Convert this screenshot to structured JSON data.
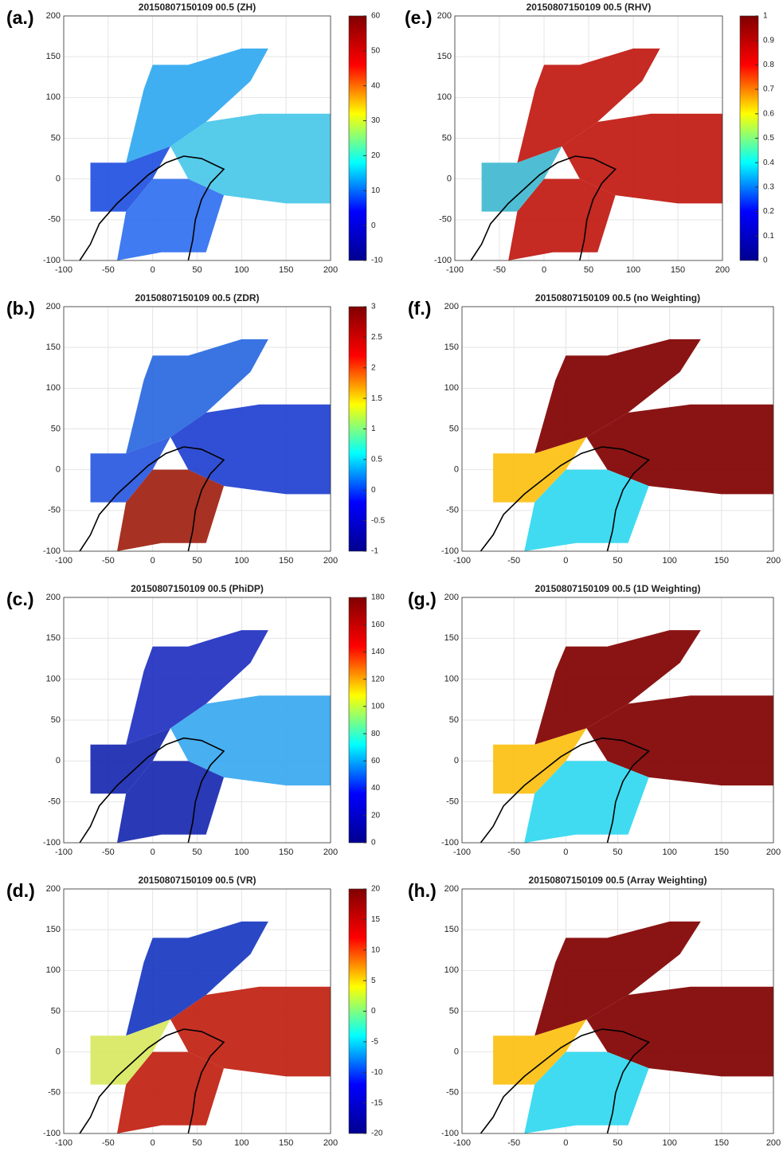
{
  "chart_data": [
    {
      "type": "radar-ppi",
      "label": "(a.)",
      "title": "20150807150109 00.5 (ZH)",
      "xlim": [
        -100,
        200
      ],
      "ylim": [
        -100,
        200
      ],
      "xticks": [
        -100,
        -50,
        0,
        50,
        100,
        150,
        200
      ],
      "yticks": [
        -100,
        -50,
        0,
        50,
        100,
        150,
        200
      ],
      "grid": true,
      "colors": [
        "#30a8f0",
        "#48c8e8",
        "#2050e0",
        "#3070f0"
      ],
      "colorbar": {
        "lim": [
          -10,
          60
        ],
        "ticks": [
          -10,
          0,
          10,
          20,
          30,
          40,
          50,
          60
        ],
        "colormap": [
          "#00008f",
          "#0000ff",
          "#00ffff",
          "#ffff00",
          "#ff0000",
          "#800000"
        ]
      }
    },
    {
      "type": "radar-ppi",
      "label": "(b.)",
      "title": "20150807150109 00.5 (ZDR)",
      "xlim": [
        -100,
        200
      ],
      "ylim": [
        -100,
        200
      ],
      "xticks": [
        -100,
        -50,
        0,
        50,
        100,
        150,
        200
      ],
      "yticks": [
        -100,
        -50,
        0,
        50,
        100,
        150,
        200
      ],
      "grid": true,
      "colors": [
        "#2868e0",
        "#2040d0",
        "#2858e0",
        "#a02010"
      ],
      "colorbar": {
        "lim": [
          -1,
          3
        ],
        "ticks": [
          -1,
          -0.5,
          0,
          0.5,
          1,
          1.5,
          2,
          2.5,
          3
        ],
        "colormap": [
          "#00008f",
          "#0000ff",
          "#00ffff",
          "#ffff00",
          "#ff0000",
          "#800000"
        ]
      }
    },
    {
      "type": "radar-ppi",
      "label": "(c.)",
      "title": "20150807150109 00.5 (PhiDP)",
      "xlim": [
        -100,
        200
      ],
      "ylim": [
        -100,
        200
      ],
      "xticks": [
        -100,
        -50,
        0,
        50,
        100,
        150,
        200
      ],
      "yticks": [
        -100,
        -50,
        0,
        50,
        100,
        150,
        200
      ],
      "grid": true,
      "colors": [
        "#2030c0",
        "#38a8f0",
        "#1828b0",
        "#1828b0"
      ],
      "colorbar": {
        "lim": [
          0,
          180
        ],
        "ticks": [
          0,
          20,
          40,
          60,
          80,
          100,
          120,
          140,
          160,
          180
        ],
        "colormap": [
          "#00008f",
          "#0000ff",
          "#00ffff",
          "#ffff00",
          "#ff0000",
          "#800000"
        ]
      }
    },
    {
      "type": "radar-ppi",
      "label": "(d.)",
      "title": "20150807150109 00.5 (VR)",
      "xlim": [
        -100,
        200
      ],
      "ylim": [
        -100,
        200
      ],
      "xticks": [
        -100,
        -50,
        0,
        50,
        100,
        150,
        200
      ],
      "yticks": [
        -100,
        -50,
        0,
        50,
        100,
        150,
        200
      ],
      "grid": true,
      "colors": [
        "#1838c0",
        "#c02010",
        "#d8e860",
        "#c02010"
      ],
      "colorbar": {
        "lim": [
          -20,
          20
        ],
        "ticks": [
          -20,
          -15,
          -10,
          -5,
          0,
          5,
          10,
          15,
          20
        ],
        "colormap": [
          "#00008f",
          "#0000ff",
          "#00ffff",
          "#ffff00",
          "#ff0000",
          "#800000"
        ]
      }
    },
    {
      "type": "radar-ppi",
      "label": "(e.)",
      "title": "20150807150109 00.5 (RHV)",
      "xlim": [
        -100,
        200
      ],
      "ylim": [
        -100,
        200
      ],
      "xticks": [
        -100,
        -50,
        0,
        50,
        100,
        150,
        200
      ],
      "yticks": [
        -100,
        -50,
        0,
        50,
        100,
        150,
        200
      ],
      "grid": true,
      "colors": [
        "#c01810",
        "#c01810",
        "#40b8d0",
        "#c01810"
      ],
      "colorbar": {
        "lim": [
          0,
          1
        ],
        "ticks": [
          0,
          0.1,
          0.2,
          0.3,
          0.4,
          0.5,
          0.6,
          0.7,
          0.8,
          0.9,
          1
        ],
        "colormap": [
          "#00008f",
          "#0000ff",
          "#00ffff",
          "#ffff00",
          "#ff0000",
          "#800000"
        ]
      }
    },
    {
      "type": "radar-ppi",
      "label": "(f.)",
      "title": "20150807150109 00.5 (no Weighting)",
      "xlim": [
        -100,
        200
      ],
      "ylim": [
        -100,
        200
      ],
      "xticks": [
        -100,
        -50,
        0,
        50,
        100,
        150,
        200
      ],
      "yticks": [
        -100,
        -50,
        0,
        50,
        100,
        150,
        200
      ],
      "grid": true,
      "colors": [
        "#800000",
        "#800000",
        "#fcc010",
        "#30d8f0"
      ]
    },
    {
      "type": "radar-ppi",
      "label": "(g.)",
      "title": "20150807150109 00.5 (1D Weighting)",
      "xlim": [
        -100,
        200
      ],
      "ylim": [
        -100,
        200
      ],
      "xticks": [
        -100,
        -50,
        0,
        50,
        100,
        150,
        200
      ],
      "yticks": [
        -100,
        -50,
        0,
        50,
        100,
        150,
        200
      ],
      "grid": true,
      "colors": [
        "#800000",
        "#800000",
        "#fcc010",
        "#30d8f0"
      ]
    },
    {
      "type": "radar-ppi",
      "label": "(h.)",
      "title": "20150807150109 00.5 (Array Weighting)",
      "xlim": [
        -100,
        200
      ],
      "ylim": [
        -100,
        200
      ],
      "xticks": [
        -100,
        -50,
        0,
        50,
        100,
        150,
        200
      ],
      "yticks": [
        -100,
        -50,
        0,
        50,
        100,
        150,
        200
      ],
      "grid": true,
      "colors": [
        "#800000",
        "#800000",
        "#fcc010",
        "#30d8f0"
      ]
    }
  ]
}
